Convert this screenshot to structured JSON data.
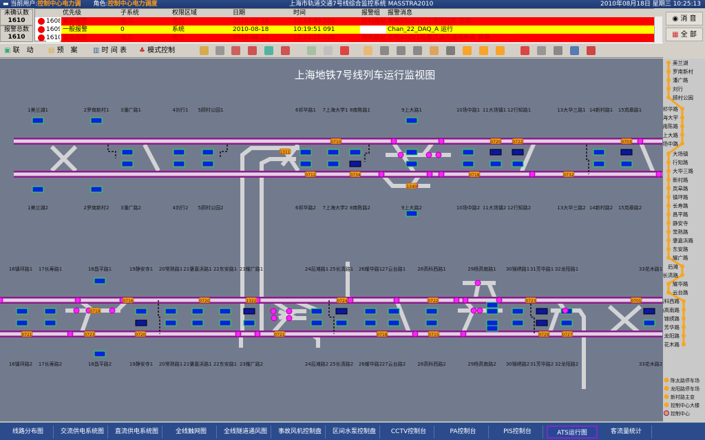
{
  "titlebar": {
    "user_label": "当前用户:",
    "user": "控制中心电力调",
    "role_label": "角色:",
    "role": "控制中心电力调度",
    "app_title": "上海市轨道交通7号线综合监控系统 MASSTRA2010",
    "datetime": "2010年08月18日 星期三 10:25:13"
  },
  "alarm": {
    "unconfirmed_label": "未确认数",
    "unconfirmed": "1610",
    "total_label": "报警总数",
    "total": "1610",
    "columns": [
      "优先级",
      "子系统",
      "权限区域",
      "日期",
      "时间",
      "报警组",
      "报警消息"
    ],
    "rows": [
      {
        "id": "1608",
        "priority": "紧急报警",
        "subsystem": "电力",
        "area": "电力",
        "date": "2010-08-18",
        "time": "10:19:49 560",
        "group": "顾村路站",
        "message": "本所1500V212通讯状态 正常",
        "level": "red"
      },
      {
        "id": "1609",
        "priority": "一般报警",
        "subsystem": "0",
        "area": "系统",
        "date": "2010-08-18",
        "time": "10:19:51 091",
        "group": "",
        "message": "Chan_22_DAQ_A 运行",
        "level": "yellow"
      },
      {
        "id": "1610",
        "priority": "紧急报警",
        "subsystem": "电力",
        "area": "电力",
        "date": "2010-08-18",
        "time": "10:24:15 026",
        "group": "南陈路站",
        "message": "本所400V1段直流通讯通讯状态 异常",
        "level": "red"
      }
    ],
    "mute_label": "消 音",
    "all_label": "全 部"
  },
  "toolbar": {
    "linkage": "联　动",
    "plan": "预　案",
    "timetable": "时 间 表",
    "mode_control": "模式控制"
  },
  "diagram": {
    "title": "上海地铁7号线列车运行监视图",
    "upper_top": [
      "1美兰湖1",
      "2罗南新村1",
      "3潘广路1",
      "4刘行1",
      "5顾村公园1",
      "6祁华路1",
      "7上海大学1",
      "8南陈路1",
      "9上大路1",
      "10场中路1",
      "11大场镇1",
      "12行知路1",
      "13大华三路1",
      "14新村路1",
      "15岚皋路1"
    ],
    "upper_bottom": [
      "1美兰湖2",
      "2罗南新村2",
      "3潘广路2",
      "4刘行2",
      "5顾村公园2",
      "6祁华路2",
      "7上海大学2",
      "8南陈路2",
      "9上大路2",
      "10场中路2",
      "11大场镇2",
      "12行知路2",
      "13大华三路2",
      "14新村路2",
      "15岚皋路2"
    ],
    "lower_top": [
      "16镇坪路1",
      "17长寿路1",
      "18昌平路1",
      "19静安寺1",
      "20常熟路1",
      "21肇嘉浜路1",
      "22东安路1",
      "23耀广路1",
      "24后滩路1",
      "25长清路1",
      "26耀华路1",
      "27云台路1",
      "28高科西路1",
      "29杨高南路1",
      "30锦绣路1",
      "31芳华路1",
      "32龙阳路1",
      "33花木路1"
    ],
    "lower_bottom": [
      "16镇坪路2",
      "17长寿路2",
      "18昌平路2",
      "19静安寺1",
      "20常熟路1",
      "21肇嘉浜路1",
      "22东安路1",
      "23耀广路2",
      "24后滩路2",
      "25长清路2",
      "26耀华路2",
      "27云台路2",
      "28高科西路2",
      "29杨高南路2",
      "30锦绣路2",
      "31芳华路2",
      "32龙阳路2",
      "33花木路2"
    ],
    "train_ids_upper": [
      "1311",
      "0710",
      "0712",
      "0734",
      "1340",
      "0718",
      "0720",
      "0722",
      "0732",
      "0703"
    ],
    "train_ids_lower": [
      "0716",
      "0720",
      "1322",
      "0721",
      "0723",
      "0720",
      "0719",
      "0721",
      "0724",
      "0718",
      "0722",
      "0715",
      "0723",
      "0729",
      "0727",
      "0701"
    ],
    "colors": {
      "background": "#727b8e",
      "track": "#e6cfe6",
      "track_border": "#8a1a8a",
      "train": "#0a22e0",
      "train_border": "#2ee04a",
      "switch": "#ff22ff",
      "train_tag": "#f39a1e"
    }
  },
  "side_map": {
    "stations": [
      "美兰湖",
      "罗南新村",
      "潘广路",
      "刘行",
      "顾村公园",
      "祁华路",
      "上海大学",
      "南陈路",
      "上大路",
      "场中路",
      "大场镇",
      "行知路",
      "大华三路",
      "新村路",
      "岚皋路",
      "镇坪路",
      "长寿路",
      "昌平路",
      "静安寺",
      "常熟路",
      "肇嘉浜路",
      "东安路",
      "耀广路",
      "后滩",
      "长清路",
      "耀华路",
      "云台路",
      "高科西路",
      "杨高南路",
      "锦绣路",
      "芳华路",
      "龙阳路",
      "花木路"
    ],
    "legend": [
      "陈太路停车场",
      "龙阳路停车场",
      "新村路主变",
      "控制中心大楼",
      "控制中心"
    ],
    "line_color": "#f5a623"
  },
  "bottom_tabs": [
    "线路分布图",
    "交流供电系统图",
    "直流供电系统图",
    "全线触网图",
    "全线隧道通风图",
    "事故风机控制盘",
    "区间水泵控制盘",
    "CCTV控制台",
    "PA控制台",
    "PIS控制台",
    "ATS运行图",
    "客流量统计"
  ],
  "active_tab": "ATS运行图"
}
